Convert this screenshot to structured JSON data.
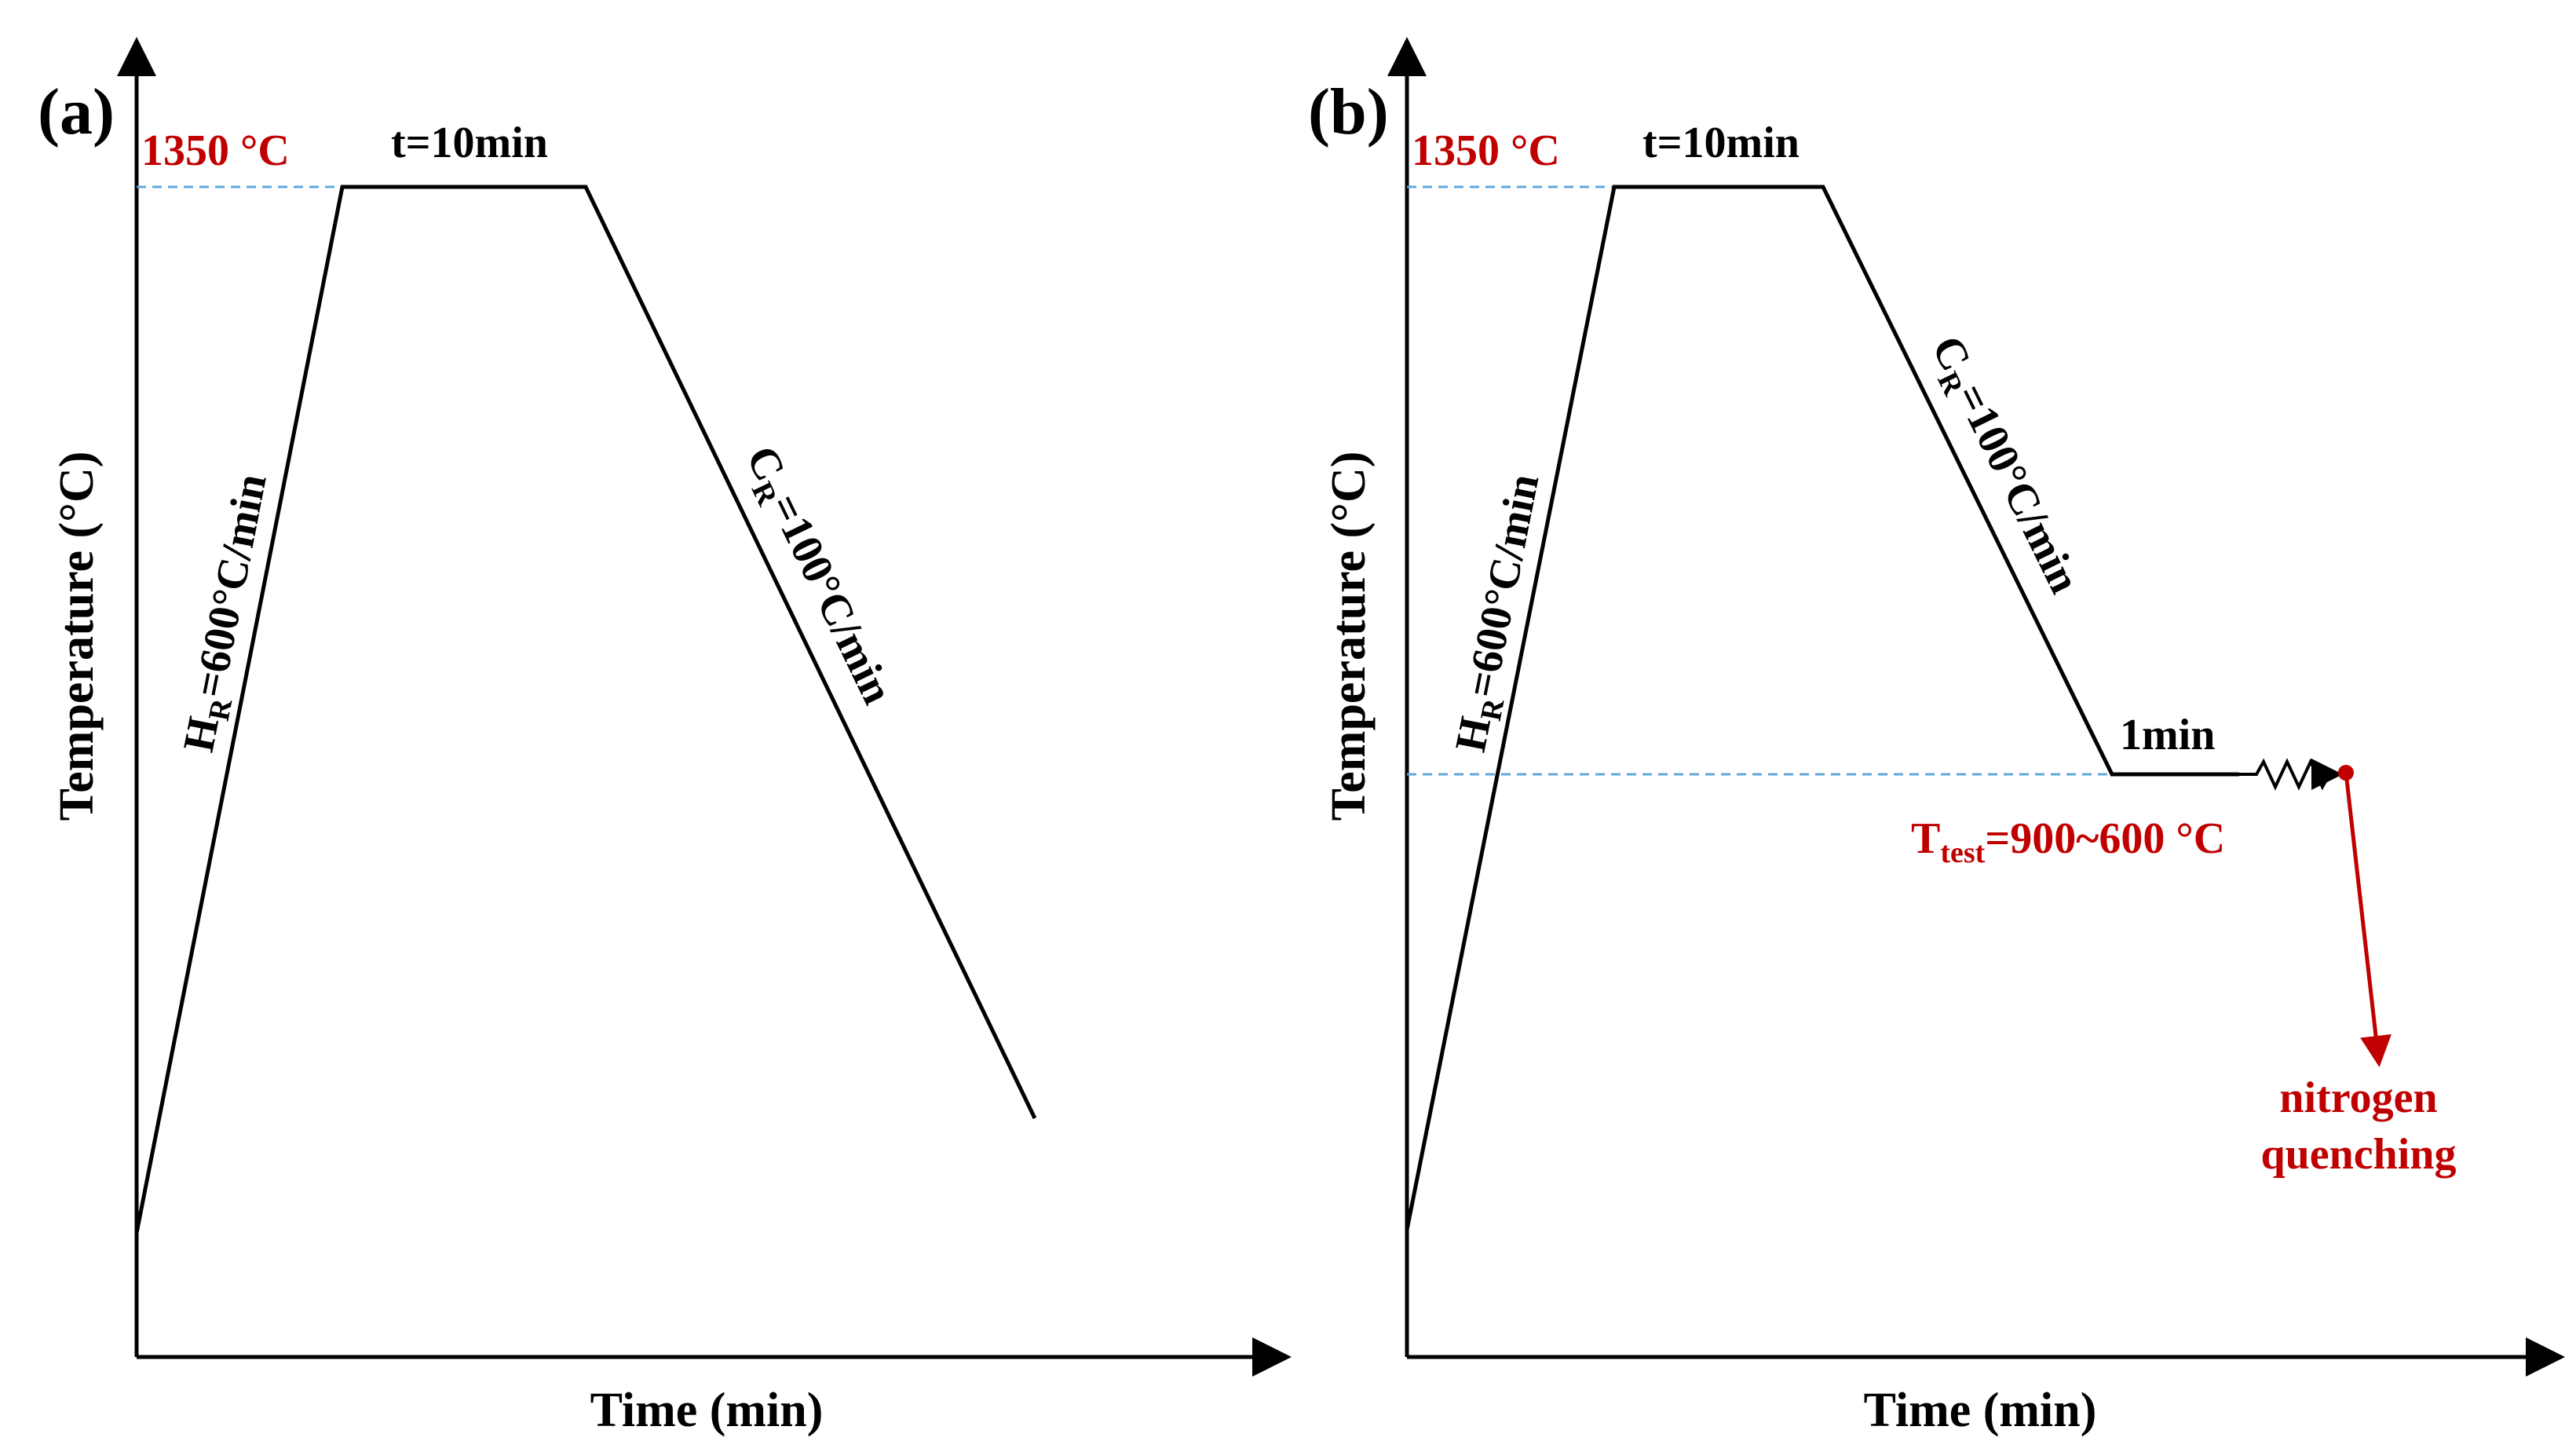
{
  "colors": {
    "curve": "#000000",
    "highlight": "#c00000",
    "guide": "#5fa8d9"
  },
  "panel_a": {
    "letter": "(a)",
    "xlabel": "Time (min)",
    "ylabel": "Temperature (°C)",
    "peak_temp": "1350 °C",
    "hold": "t=10min",
    "heating_rate": {
      "prefix": "H",
      "sub": "R",
      "rest": "=600°C/min"
    },
    "cooling_rate": {
      "prefix": "C",
      "sub": "R",
      "rest": "=100°C/min"
    }
  },
  "panel_b": {
    "letter": "(b)",
    "xlabel": "Time (min)",
    "ylabel": "Temperature (°C)",
    "peak_temp": "1350 °C",
    "hold": "t=10min",
    "heating_rate": {
      "prefix": "H",
      "sub": "R",
      "rest": "=600°C/min"
    },
    "cooling_rate": {
      "prefix": "C",
      "sub": "R",
      "rest": "=100°C/min"
    },
    "isothermal_hold": "1min",
    "test_temp": {
      "prefix": "T",
      "sub": "test",
      "rest": "=900~600 °C"
    },
    "quench_line1": "nitrogen",
    "quench_line2": "quenching"
  }
}
